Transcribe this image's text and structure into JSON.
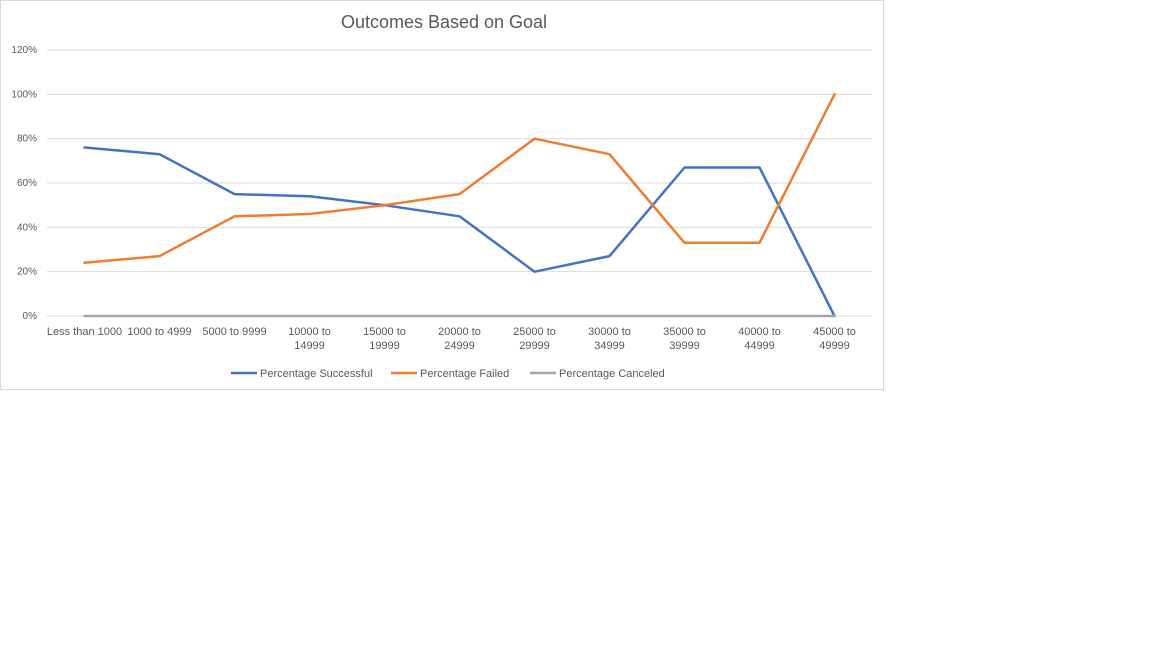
{
  "chart_data": {
    "type": "line",
    "title": "Outcomes Based on Goal",
    "xlabel": "",
    "ylabel": "",
    "ylim": [
      0,
      1.2
    ],
    "y_ticks": [
      "0%",
      "20%",
      "40%",
      "60%",
      "80%",
      "100%",
      "120%"
    ],
    "grid": true,
    "legend_position": "bottom",
    "categories": [
      "Less than 1000",
      "1000 to 4999",
      "5000 to 9999",
      "10000 to 14999",
      "15000 to 19999",
      "20000 to 24999",
      "25000 to 29999",
      "30000 to 34999",
      "35000 to 39999",
      "40000 to 44999",
      "45000 to 49999"
    ],
    "category_lines": [
      [
        "Less than 1000"
      ],
      [
        "1000 to 4999"
      ],
      [
        "5000 to 9999"
      ],
      [
        "10000 to",
        "14999"
      ],
      [
        "15000 to",
        "19999"
      ],
      [
        "20000 to",
        "24999"
      ],
      [
        "25000 to",
        "29999"
      ],
      [
        "30000 to",
        "34999"
      ],
      [
        "35000 to",
        "39999"
      ],
      [
        "40000 to",
        "44999"
      ],
      [
        "45000 to",
        "49999"
      ]
    ],
    "series": [
      {
        "name": "Percentage Successful",
        "color": "#4472c4",
        "values": [
          0.76,
          0.73,
          0.55,
          0.54,
          0.5,
          0.45,
          0.2,
          0.27,
          0.67,
          0.67,
          0.0
        ]
      },
      {
        "name": "Percentage Failed",
        "color": "#ed7d31",
        "values": [
          0.24,
          0.27,
          0.45,
          0.46,
          0.5,
          0.55,
          0.8,
          0.73,
          0.33,
          0.33,
          1.0
        ]
      },
      {
        "name": "Percentage Canceled",
        "color": "#a5a5a5",
        "values": [
          0,
          0,
          0,
          0,
          0,
          0,
          0,
          0,
          0,
          0,
          0
        ]
      }
    ]
  }
}
